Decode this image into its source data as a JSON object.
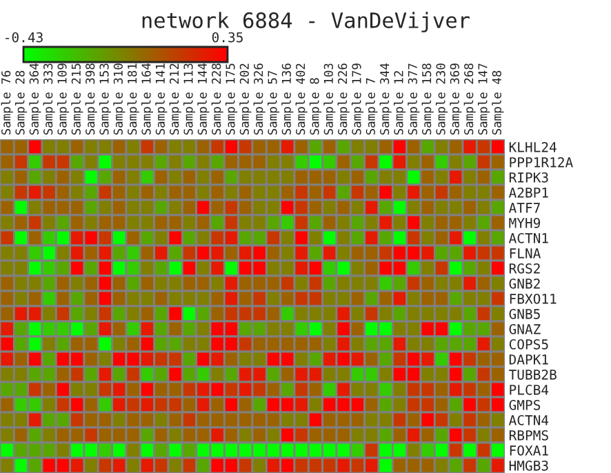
{
  "chart_data": {
    "type": "heatmap",
    "title": "network 6884 - VanDeVijver",
    "categories": [
      "Sample 76",
      "Sample 28",
      "Sample 364",
      "Sample 333",
      "Sample 109",
      "Sample 215",
      "Sample 398",
      "Sample 153",
      "Sample 310",
      "Sample 181",
      "Sample 164",
      "Sample 141",
      "Sample 212",
      "Sample 113",
      "Sample 144",
      "Sample 228",
      "Sample 175",
      "Sample 202",
      "Sample 326",
      "Sample 57",
      "Sample 136",
      "Sample 402",
      "Sample 8",
      "Sample 103",
      "Sample 226",
      "Sample 179",
      "Sample 7",
      "Sample 344",
      "Sample 12",
      "Sample 377",
      "Sample 158",
      "Sample 230",
      "Sample 369",
      "Sample 268",
      "Sample 147",
      "Sample 48"
    ],
    "y_categories": [
      "KLHL24",
      "PPP1R12A",
      "RIPK3",
      "A2BP1",
      "ATF7",
      "MYH9",
      "ACTN1",
      "FLNA",
      "RGS2",
      "GNB2",
      "FBXO11",
      "GNB5",
      "GNAZ",
      "COPS5",
      "DAPK1",
      "TUBB2B",
      "PLCB4",
      "GMPS",
      "ACTN4",
      "RBPMS",
      "FOXA1",
      "HMGB3"
    ],
    "cells": [
      [
        0.05,
        0.05,
        0.34,
        -0.04,
        -0.04,
        0.05,
        -0.04,
        -0.04,
        0.05,
        -0.04,
        0.18,
        0.05,
        -0.04,
        -0.04,
        0.05,
        0.18,
        0.34,
        0.18,
        0.05,
        0.05,
        0.27,
        0.05,
        -0.16,
        0.05,
        -0.16,
        -0.04,
        -0.04,
        0.05,
        0.34,
        0.05,
        -0.16,
        -0.04,
        0.05,
        0.27,
        0.18,
        0.34
      ],
      [
        0.05,
        0.18,
        -0.27,
        0.18,
        0.18,
        -0.16,
        -0.04,
        -0.42,
        -0.04,
        -0.04,
        -0.04,
        -0.16,
        -0.04,
        -0.16,
        -0.04,
        -0.16,
        0.05,
        0.05,
        0.05,
        -0.04,
        -0.04,
        -0.27,
        -0.42,
        -0.27,
        0.05,
        -0.16,
        0.18,
        -0.42,
        0.27,
        -0.04,
        0.05,
        -0.27,
        -0.04,
        -0.16,
        0.18,
        0.05
      ],
      [
        -0.04,
        0.05,
        -0.16,
        -0.04,
        0.05,
        -0.04,
        -0.42,
        -0.16,
        0.05,
        -0.04,
        -0.27,
        0.05,
        -0.04,
        0.05,
        -0.04,
        0.05,
        -0.16,
        -0.04,
        -0.04,
        -0.04,
        -0.04,
        0.05,
        0.05,
        0.05,
        -0.04,
        0.05,
        -0.16,
        -0.04,
        -0.04,
        -0.42,
        0.05,
        -0.04,
        0.27,
        -0.04,
        0.05,
        -0.16
      ],
      [
        -0.04,
        0.18,
        0.27,
        0.18,
        0.05,
        -0.04,
        -0.16,
        0.18,
        0.05,
        -0.04,
        0.05,
        -0.04,
        0.05,
        0.05,
        -0.04,
        0.05,
        -0.04,
        0.05,
        -0.04,
        -0.04,
        0.05,
        0.18,
        0.05,
        0.18,
        -0.16,
        0.18,
        0.05,
        0.34,
        -0.04,
        0.27,
        0.05,
        0.18,
        0.05,
        -0.04,
        -0.04,
        0.05
      ],
      [
        0.05,
        -0.42,
        -0.04,
        0.05,
        0.05,
        0.05,
        -0.16,
        -0.04,
        0.05,
        -0.04,
        -0.04,
        -0.16,
        -0.04,
        0.05,
        0.34,
        0.05,
        0.18,
        0.05,
        -0.04,
        -0.04,
        0.34,
        0.18,
        0.05,
        -0.04,
        0.05,
        -0.04,
        0.27,
        -0.16,
        -0.42,
        -0.04,
        0.05,
        -0.04,
        -0.04,
        0.05,
        -0.04,
        -0.16
      ],
      [
        -0.04,
        0.05,
        0.18,
        -0.04,
        -0.16,
        0.05,
        -0.04,
        0.05,
        0.05,
        -0.04,
        -0.04,
        0.05,
        0.05,
        -0.04,
        0.05,
        -0.16,
        0.18,
        -0.04,
        -0.04,
        -0.16,
        -0.27,
        0.18,
        -0.16,
        0.05,
        -0.04,
        -0.16,
        -0.04,
        0.27,
        -0.04,
        0.34,
        -0.04,
        0.05,
        0.05,
        -0.04,
        -0.16,
        0.05
      ],
      [
        0.18,
        -0.42,
        0.05,
        -0.27,
        -0.42,
        0.27,
        0.34,
        0.18,
        -0.42,
        0.05,
        -0.16,
        -0.04,
        0.34,
        -0.16,
        -0.04,
        0.18,
        0.27,
        -0.16,
        -0.16,
        0.18,
        -0.04,
        0.34,
        -0.04,
        -0.42,
        -0.04,
        -0.16,
        0.27,
        -0.16,
        -0.42,
        0.18,
        -0.04,
        0.05,
        0.27,
        -0.42,
        -0.04,
        -0.16
      ],
      [
        -0.04,
        -0.04,
        -0.27,
        -0.42,
        -0.04,
        0.27,
        0.05,
        0.27,
        -0.16,
        -0.27,
        0.05,
        0.27,
        -0.16,
        0.18,
        0.34,
        0.27,
        0.05,
        0.27,
        0.34,
        0.05,
        -0.04,
        0.27,
        -0.16,
        0.27,
        -0.04,
        0.05,
        0.05,
        0.18,
        0.34,
        0.34,
        0.27,
        -0.16,
        -0.16,
        0.27,
        0.18,
        0.18
      ],
      [
        -0.04,
        -0.04,
        -0.42,
        -0.27,
        -0.16,
        0.34,
        -0.16,
        0.34,
        -0.42,
        -0.27,
        -0.04,
        -0.16,
        -0.42,
        0.34,
        -0.04,
        0.27,
        -0.42,
        0.34,
        0.34,
        -0.04,
        -0.04,
        0.27,
        0.34,
        -0.27,
        -0.42,
        -0.04,
        0.05,
        0.34,
        0.34,
        -0.27,
        -0.04,
        0.18,
        -0.42,
        -0.16,
        -0.04,
        0.34
      ],
      [
        0.05,
        -0.04,
        -0.04,
        -0.16,
        0.05,
        -0.04,
        0.05,
        0.34,
        0.05,
        -0.16,
        0.05,
        -0.04,
        -0.04,
        0.05,
        0.05,
        -0.04,
        0.27,
        0.05,
        0.05,
        0.05,
        0.18,
        -0.04,
        0.18,
        -0.16,
        -0.04,
        -0.04,
        -0.04,
        -0.27,
        -0.16,
        0.18,
        0.05,
        -0.04,
        -0.04,
        0.27,
        0.05,
        -0.04
      ],
      [
        0.05,
        -0.04,
        0.05,
        -0.27,
        0.05,
        -0.16,
        0.05,
        0.34,
        0.05,
        -0.04,
        -0.04,
        0.05,
        -0.04,
        -0.04,
        -0.04,
        0.05,
        0.27,
        0.05,
        0.18,
        -0.04,
        0.05,
        0.18,
        0.18,
        -0.04,
        -0.04,
        0.05,
        -0.16,
        0.05,
        0.27,
        -0.04,
        0.05,
        0.05,
        -0.16,
        -0.04,
        -0.04,
        0.18
      ],
      [
        0.05,
        0.27,
        0.27,
        -0.04,
        0.18,
        -0.16,
        -0.04,
        0.18,
        -0.16,
        -0.04,
        0.05,
        -0.16,
        0.34,
        -0.42,
        -0.16,
        0.05,
        0.18,
        0.18,
        0.18,
        0.05,
        -0.27,
        -0.04,
        -0.04,
        -0.04,
        0.27,
        -0.04,
        0.18,
        -0.04,
        -0.16,
        -0.04,
        -0.04,
        -0.04,
        -0.04,
        -0.16,
        0.18,
        -0.04
      ],
      [
        0.27,
        -0.16,
        -0.42,
        -0.27,
        -0.27,
        -0.42,
        -0.16,
        0.27,
        0.05,
        -0.27,
        0.27,
        -0.16,
        0.05,
        -0.16,
        -0.04,
        0.34,
        0.34,
        -0.16,
        -0.16,
        -0.04,
        -0.04,
        -0.27,
        -0.42,
        -0.04,
        0.34,
        0.05,
        -0.42,
        -0.42,
        -0.04,
        -0.04,
        0.34,
        0.34,
        -0.42,
        -0.16,
        -0.16,
        0.05
      ],
      [
        0.34,
        -0.16,
        -0.42,
        -0.04,
        -0.16,
        0.05,
        0.05,
        -0.42,
        -0.04,
        0.05,
        0.34,
        -0.16,
        -0.16,
        -0.04,
        -0.04,
        0.34,
        0.34,
        0.18,
        0.05,
        0.05,
        0.05,
        0.05,
        0.05,
        -0.04,
        0.27,
        -0.04,
        -0.16,
        -0.16,
        0.27,
        -0.04,
        -0.04,
        -0.16,
        -0.16,
        -0.16,
        0.27,
        -0.04
      ],
      [
        0.27,
        0.05,
        0.34,
        -0.16,
        0.34,
        0.34,
        0.05,
        -0.04,
        0.34,
        0.34,
        0.27,
        0.18,
        0.18,
        -0.16,
        0.34,
        0.27,
        0.05,
        -0.04,
        -0.04,
        0.34,
        0.34,
        -0.04,
        -0.16,
        0.27,
        0.34,
        0.27,
        0.05,
        -0.16,
        0.18,
        0.34,
        0.27,
        -0.27,
        0.34,
        0.18,
        0.05,
        0.05
      ],
      [
        -0.04,
        -0.04,
        -0.16,
        -0.16,
        0.05,
        0.18,
        -0.16,
        0.27,
        -0.16,
        0.18,
        -0.27,
        -0.16,
        0.34,
        -0.16,
        -0.27,
        -0.04,
        -0.16,
        0.27,
        0.27,
        -0.16,
        0.05,
        0.27,
        0.27,
        -0.04,
        -0.04,
        -0.27,
        -0.27,
        -0.04,
        0.34,
        0.34,
        -0.04,
        -0.04,
        0.34,
        -0.16,
        0.18,
        0.05
      ],
      [
        -0.16,
        -0.16,
        0.18,
        0.05,
        0.34,
        -0.04,
        -0.04,
        0.18,
        0.27,
        0.05,
        0.34,
        0.05,
        0.05,
        0.18,
        0.27,
        0.34,
        0.18,
        0.27,
        0.18,
        0.05,
        -0.16,
        0.18,
        0.05,
        -0.27,
        0.27,
        -0.04,
        -0.04,
        -0.27,
        -0.04,
        0.18,
        0.18,
        0.05,
        0.27,
        0.18,
        0.05,
        0.34
      ],
      [
        0.05,
        -0.27,
        -0.27,
        -0.04,
        0.18,
        0.34,
        0.05,
        -0.27,
        0.27,
        0.18,
        0.27,
        0.18,
        0.18,
        0.05,
        0.27,
        0.05,
        0.34,
        0.05,
        -0.16,
        0.34,
        0.34,
        0.27,
        -0.04,
        0.34,
        0.34,
        0.34,
        0.05,
        -0.16,
        -0.04,
        0.18,
        0.18,
        0.05,
        -0.16,
        0.34,
        0.18,
        0.34
      ],
      [
        -0.04,
        -0.04,
        0.27,
        -0.16,
        -0.16,
        0.18,
        0.05,
        0.05,
        -0.04,
        0.05,
        0.05,
        -0.04,
        0.05,
        0.18,
        0.05,
        0.05,
        0.05,
        0.05,
        0.05,
        0.05,
        -0.04,
        -0.04,
        0.34,
        0.05,
        0.05,
        0.05,
        -0.04,
        -0.04,
        0.18,
        0.05,
        0.34,
        0.18,
        -0.04,
        0.18,
        0.05,
        -0.04
      ],
      [
        -0.04,
        0.05,
        -0.16,
        -0.04,
        0.05,
        0.05,
        0.18,
        0.05,
        0.05,
        0.05,
        -0.16,
        0.05,
        -0.04,
        0.05,
        0.05,
        0.27,
        0.05,
        -0.04,
        0.05,
        -0.04,
        0.34,
        0.18,
        0.05,
        0.05,
        0.05,
        -0.04,
        -0.04,
        -0.16,
        0.05,
        0.27,
        0.05,
        -0.16,
        0.34,
        0.18,
        -0.04,
        0.05
      ],
      [
        -0.42,
        -0.16,
        -0.16,
        -0.16,
        -0.04,
        -0.42,
        -0.42,
        -0.27,
        -0.42,
        -0.04,
        -0.42,
        -0.16,
        -0.42,
        -0.16,
        -0.42,
        -0.42,
        -0.42,
        -0.42,
        -0.42,
        -0.42,
        -0.42,
        -0.42,
        -0.42,
        -0.42,
        -0.42,
        -0.27,
        0.18,
        -0.42,
        -0.42,
        -0.04,
        -0.27,
        -0.42,
        0.18,
        -0.42,
        0.18,
        -0.42
      ],
      [
        -0.04,
        -0.42,
        -0.16,
        0.34,
        0.34,
        0.27,
        -0.04,
        0.18,
        0.27,
        -0.04,
        0.27,
        0.18,
        -0.04,
        0.18,
        -0.16,
        0.34,
        0.34,
        0.18,
        -0.04,
        0.27,
        0.34,
        0.18,
        0.18,
        0.18,
        0.27,
        0.18,
        0.27,
        -0.42,
        0.05,
        0.05,
        0.05,
        -0.04,
        -0.16,
        0.18,
        -0.16,
        0.27
      ]
    ],
    "clim": [
      -0.43,
      0.35
    ],
    "cticks": [
      -0.43,
      0.35
    ]
  }
}
